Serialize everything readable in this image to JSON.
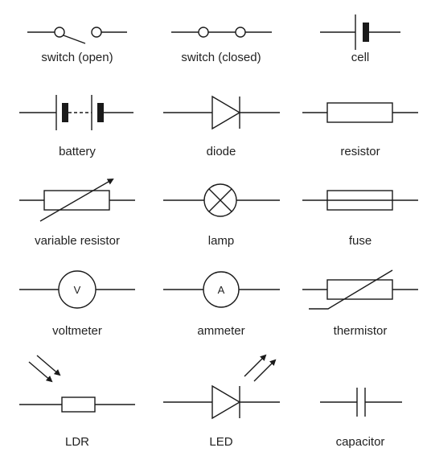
{
  "symbols": [
    {
      "id": "switch-open",
      "label": "switch (open)"
    },
    {
      "id": "switch-closed",
      "label": "switch (closed)"
    },
    {
      "id": "cell",
      "label": "cell"
    },
    {
      "id": "battery",
      "label": "battery"
    },
    {
      "id": "diode",
      "label": "diode"
    },
    {
      "id": "resistor",
      "label": "resistor"
    },
    {
      "id": "variable-resistor",
      "label": "variable resistor"
    },
    {
      "id": "lamp",
      "label": "lamp"
    },
    {
      "id": "fuse",
      "label": "fuse"
    },
    {
      "id": "voltmeter",
      "label": "voltmeter",
      "glyph": "V"
    },
    {
      "id": "ammeter",
      "label": "ammeter",
      "glyph": "A"
    },
    {
      "id": "thermistor",
      "label": "thermistor"
    },
    {
      "id": "ldr",
      "label": "LDR"
    },
    {
      "id": "led",
      "label": "LED"
    },
    {
      "id": "capacitor",
      "label": "capacitor"
    }
  ],
  "colors": {
    "stroke": "#1a1a1a",
    "fill": "#1a1a1a",
    "text": "#222222"
  }
}
